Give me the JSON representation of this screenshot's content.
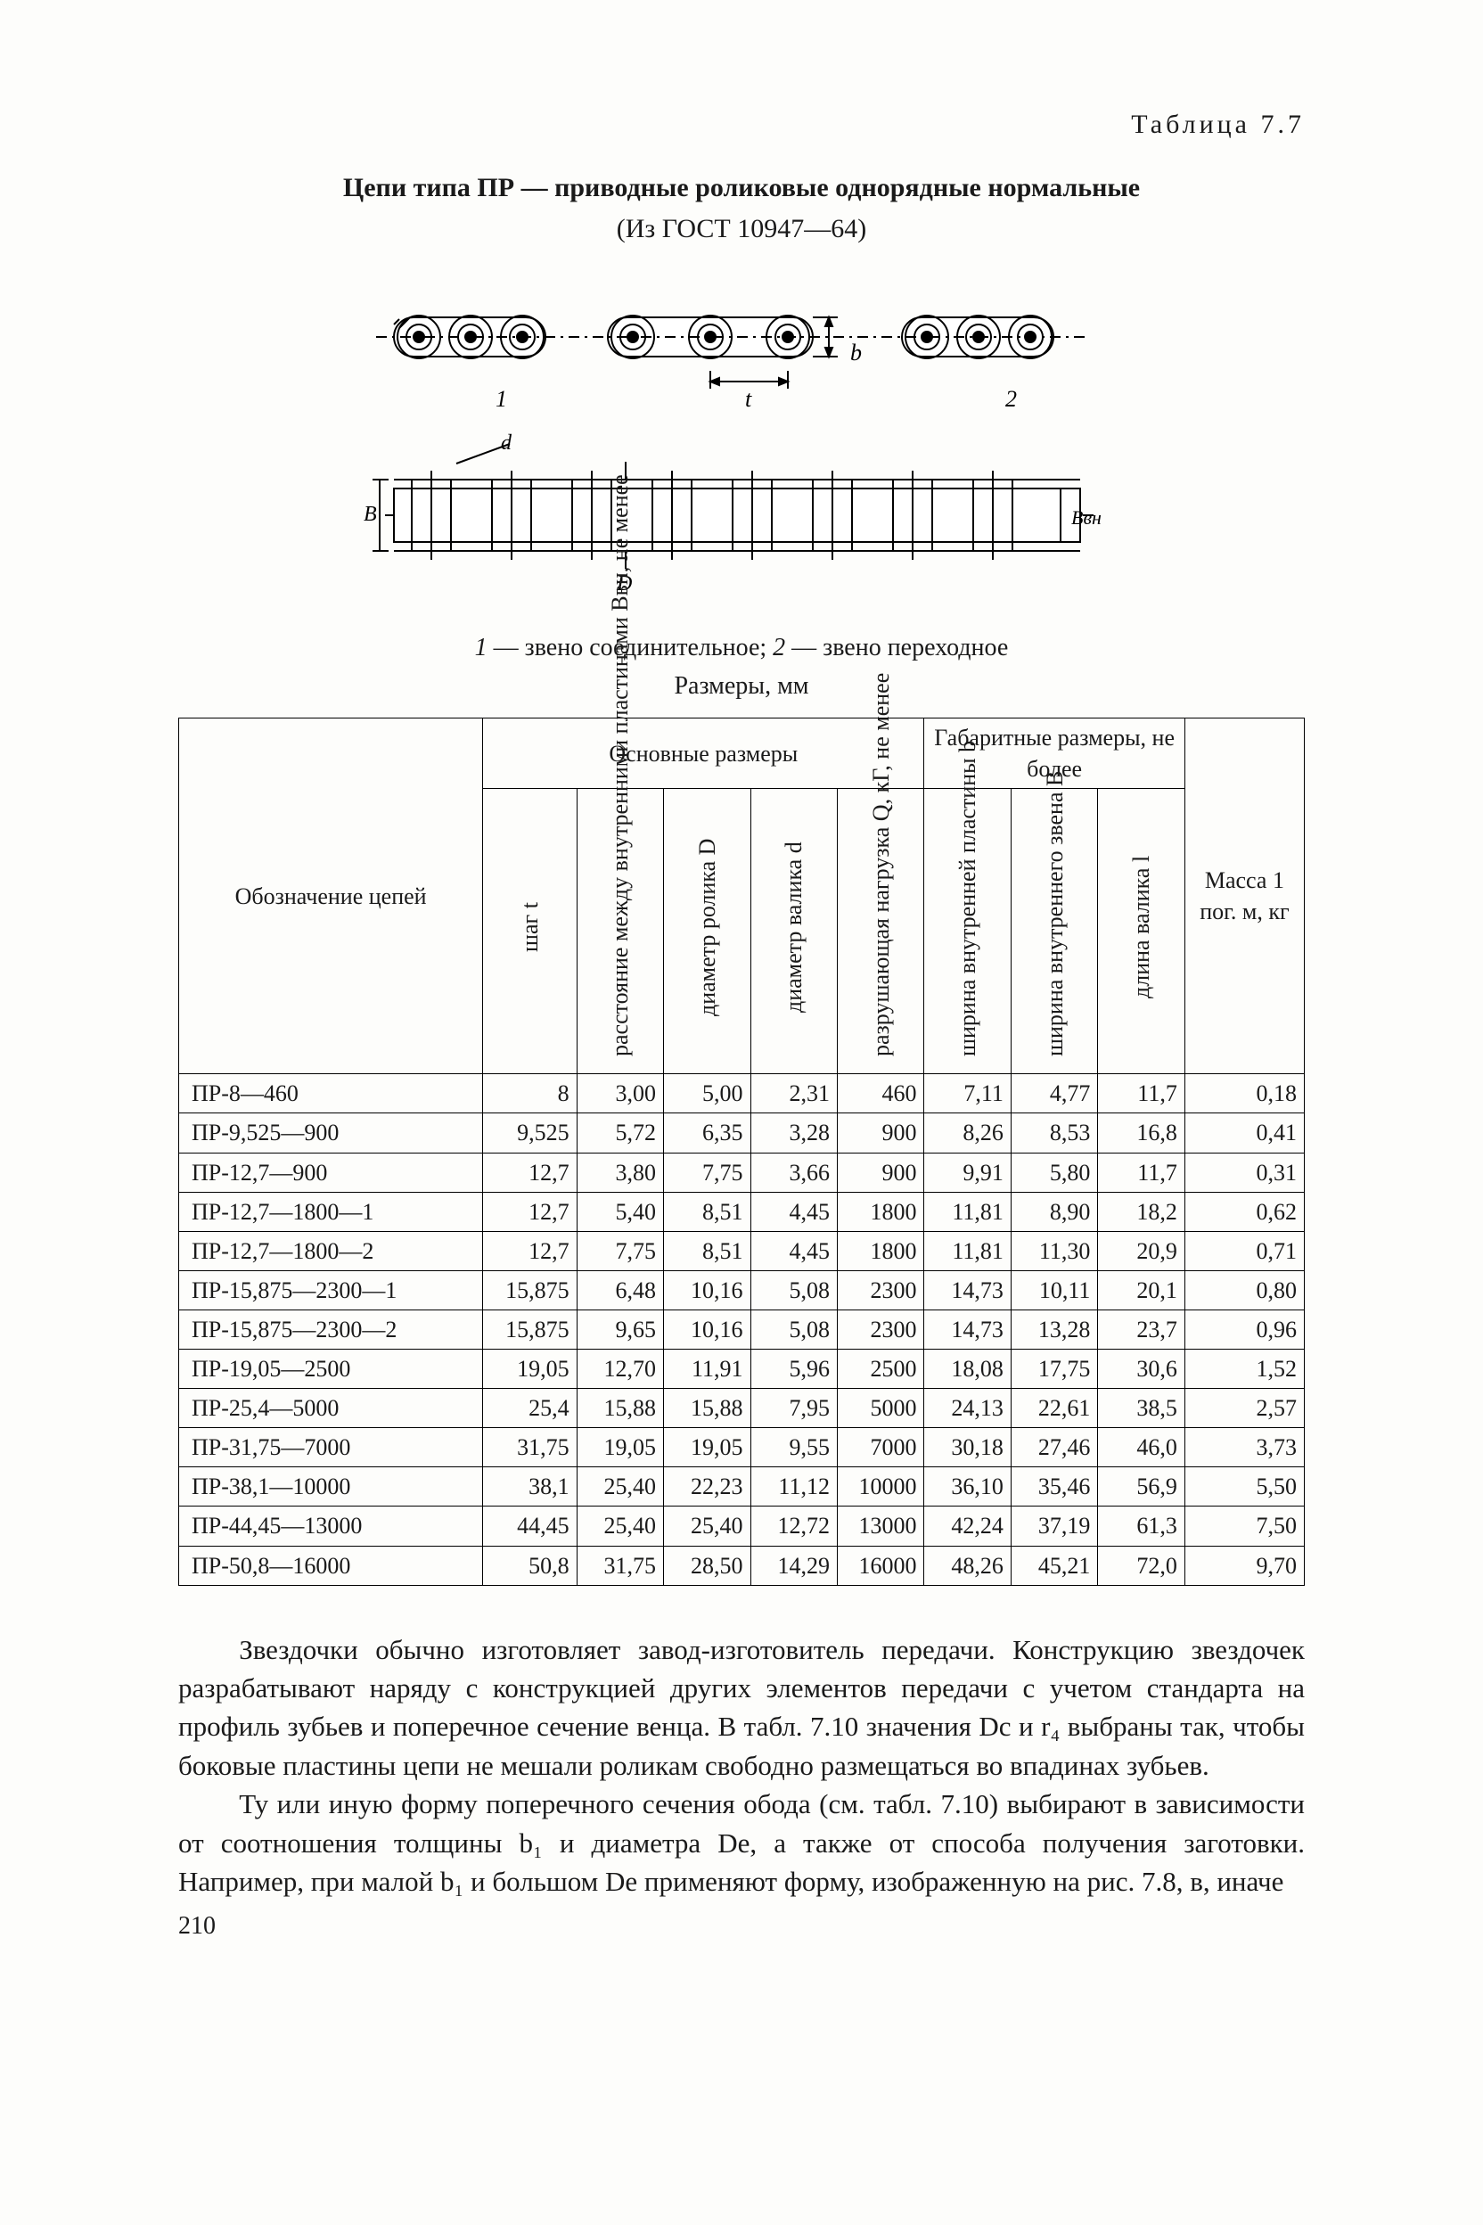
{
  "tableLabel": "Таблица 7.7",
  "title": "Цепи типа ПР — приводные роликовые однорядные нормальные",
  "subtitle": "(Из ГОСТ 10947—64)",
  "caption_prefix1": "1",
  "caption_text1": " — звено соединительное;   ",
  "caption_prefix2": "2",
  "caption_text2": " — звено переходное",
  "sizes_label": "Размеры, мм",
  "headers": {
    "designation": "Обозначение цепей",
    "main_group": "Основные размеры",
    "overall_group": "Габаритные размеры, не более",
    "mass": "Масса 1 пог. м, кг",
    "step": "шаг t",
    "dist": "расстояние между внутренними пласти­нами Bвн, не менее",
    "rollerD": "диаметр ролика D",
    "pinD": "диаметр валика d",
    "load": "разрушающая на­грузка Q, кГ, не менее",
    "plateW": "ширина внутренней пластины b",
    "linkW": "ширина внутреннего звена B",
    "pinL": "длина валика l"
  },
  "rows": [
    {
      "d": "ПР-8—460",
      "t": "8",
      "b": "3,00",
      "D": "5,00",
      "dpin": "2,31",
      "Q": "460",
      "bp": "7,11",
      "B": "4,77",
      "l": "11,7",
      "m": "0,18"
    },
    {
      "d": "ПР-9,525—900",
      "t": "9,525",
      "b": "5,72",
      "D": "6,35",
      "dpin": "3,28",
      "Q": "900",
      "bp": "8,26",
      "B": "8,53",
      "l": "16,8",
      "m": "0,41"
    },
    {
      "d": "ПР-12,7—900",
      "t": "12,7",
      "b": "3,80",
      "D": "7,75",
      "dpin": "3,66",
      "Q": "900",
      "bp": "9,91",
      "B": "5,80",
      "l": "11,7",
      "m": "0,31"
    },
    {
      "d": "ПР-12,7—1800—1",
      "t": "12,7",
      "b": "5,40",
      "D": "8,51",
      "dpin": "4,45",
      "Q": "1800",
      "bp": "11,81",
      "B": "8,90",
      "l": "18,2",
      "m": "0,62"
    },
    {
      "d": "ПР-12,7—1800—2",
      "t": "12,7",
      "b": "7,75",
      "D": "8,51",
      "dpin": "4,45",
      "Q": "1800",
      "bp": "11,81",
      "B": "11,30",
      "l": "20,9",
      "m": "0,71"
    },
    {
      "d": "ПР-15,875—2300—1",
      "t": "15,875",
      "b": "6,48",
      "D": "10,16",
      "dpin": "5,08",
      "Q": "2300",
      "bp": "14,73",
      "B": "10,11",
      "l": "20,1",
      "m": "0,80"
    },
    {
      "d": "ПР-15,875—2300—2",
      "t": "15,875",
      "b": "9,65",
      "D": "10,16",
      "dpin": "5,08",
      "Q": "2300",
      "bp": "14,73",
      "B": "13,28",
      "l": "23,7",
      "m": "0,96"
    },
    {
      "d": "ПР-19,05—2500",
      "t": "19,05",
      "b": "12,70",
      "D": "11,91",
      "dpin": "5,96",
      "Q": "2500",
      "bp": "18,08",
      "B": "17,75",
      "l": "30,6",
      "m": "1,52"
    },
    {
      "d": "ПР-25,4—5000",
      "t": "25,4",
      "b": "15,88",
      "D": "15,88",
      "dpin": "7,95",
      "Q": "5000",
      "bp": "24,13",
      "B": "22,61",
      "l": "38,5",
      "m": "2,57"
    },
    {
      "d": "ПР-31,75—7000",
      "t": "31,75",
      "b": "19,05",
      "D": "19,05",
      "dpin": "9,55",
      "Q": "7000",
      "bp": "30,18",
      "B": "27,46",
      "l": "46,0",
      "m": "3,73"
    },
    {
      "d": "ПР-38,1—10000",
      "t": "38,1",
      "b": "25,40",
      "D": "22,23",
      "dpin": "11,12",
      "Q": "10000",
      "bp": "36,10",
      "B": "35,46",
      "l": "56,9",
      "m": "5,50"
    },
    {
      "d": "ПР-44,45—13000",
      "t": "44,45",
      "b": "25,40",
      "D": "25,40",
      "dpin": "12,72",
      "Q": "13000",
      "bp": "42,24",
      "B": "37,19",
      "l": "61,3",
      "m": "7,50"
    },
    {
      "d": "ПР-50,8—16000",
      "t": "50,8",
      "b": "31,75",
      "D": "28,50",
      "dpin": "14,29",
      "Q": "16000",
      "bp": "48,26",
      "B": "45,21",
      "l": "72,0",
      "m": "9,70"
    }
  ],
  "para1": "Звездочки обычно изготовляет завод-изготовитель передачи. Кон­струкцию звездочек разрабатывают наряду с конструкцией других элементов передачи с учетом стандарта на профиль зубьев и поперечное сечение венца. В табл. 7.10 значения Dс и r₄ выбраны так, чтобы бо­ковые пластины цепи не мешали роликам свободно размещаться во впа­динах зубьев.",
  "para2": "Ту или иную форму поперечного сечения обода (см. табл. 7.10) выбирают в зависимости от соотношения толщины b₁ и диаметра Dе, а также от способа получения заготовки. Например, при малой b₁ и большом Dе применяют форму, изображенную на рис. 7.8, в, иначе",
  "pagenum": "210",
  "diagram": {
    "label_t": "t",
    "label_b": "b",
    "label_1": "1",
    "label_2": "2",
    "label_d": "d",
    "label_B": "B",
    "label_D": "D",
    "label_Bvn": "Bвн"
  }
}
